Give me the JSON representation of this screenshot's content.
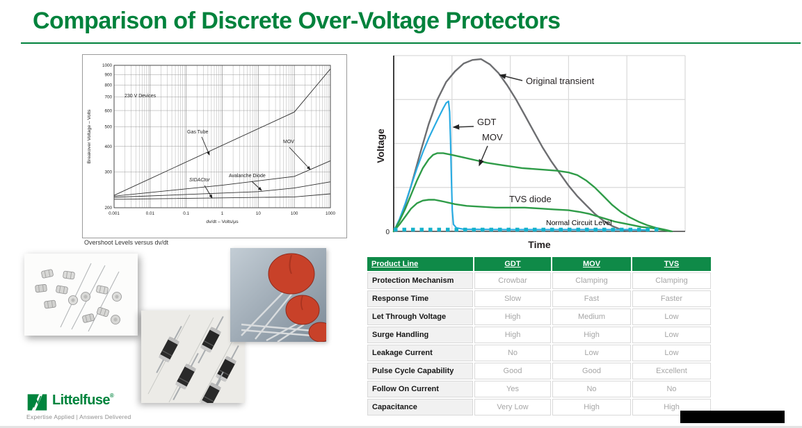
{
  "title": "Comparison of Discrete Over-Voltage Protectors",
  "colors": {
    "accent_green": "#00823C",
    "table_header_green": "#0F8A48",
    "transient_gray": "#6d6e71",
    "gdt_blue": "#29abe2",
    "curve_green": "#2f9c48",
    "normal_level_teal": "#16b2cb"
  },
  "chart_data": [
    {
      "type": "line",
      "title": "Overshoot Levels versus dv/dt",
      "xlabel": "dv/dt – Volts/μs",
      "ylabel": "Breakover Voltage – Volts",
      "xscale": "log",
      "yscale": "log",
      "xlim": [
        0.001,
        1000
      ],
      "ylim": [
        200,
        1000
      ],
      "grid": true,
      "x_ticks": [
        "0.001",
        "0.01",
        "0.1",
        "1",
        "10",
        "100",
        "1000"
      ],
      "y_ticks": [
        1000,
        900,
        800,
        700,
        600,
        500,
        400,
        300,
        200
      ],
      "annotations": {
        "devices": "230 V Devices",
        "gas_tube": "Gas Tube",
        "mov": "MOV",
        "avalanche": "Avalanche Diode",
        "sidactor": "SIDACtor"
      },
      "series": [
        {
          "name": "Gas Tube",
          "points": [
            [
              0.001,
              230
            ],
            [
              100,
              590
            ],
            [
              1000,
              960
            ]
          ]
        },
        {
          "name": "MOV",
          "points": [
            [
              0.001,
              228
            ],
            [
              1,
              258
            ],
            [
              100,
              285
            ],
            [
              1000,
              340
            ]
          ]
        },
        {
          "name": "Avalanche Diode",
          "points": [
            [
              0.001,
              225
            ],
            [
              10,
              240
            ],
            [
              100,
              250
            ],
            [
              1000,
              268
            ]
          ]
        },
        {
          "name": "SIDACtor",
          "points": [
            [
              0.001,
              220
            ],
            [
              100,
              226
            ],
            [
              1000,
              234
            ]
          ]
        }
      ]
    },
    {
      "type": "line",
      "xlabel": "Time",
      "ylabel": "Voltage",
      "origin_label": "0",
      "grid": true,
      "normal_level_label": "Normal Circuit Level",
      "series": [
        {
          "name": "Original transient",
          "color": "#6d6e71",
          "width": 2.4,
          "points": [
            [
              0,
              0
            ],
            [
              3,
              10
            ],
            [
              6,
              26
            ],
            [
              9,
              44
            ],
            [
              12,
              61
            ],
            [
              15,
              75
            ],
            [
              18,
              85
            ],
            [
              21,
              91
            ],
            [
              24,
              95.5
            ],
            [
              27,
              97.5
            ],
            [
              30,
              98
            ],
            [
              33,
              95
            ],
            [
              36,
              90
            ],
            [
              39,
              83
            ],
            [
              42,
              75
            ],
            [
              45,
              66
            ],
            [
              48,
              57
            ],
            [
              51,
              48
            ],
            [
              54,
              40
            ],
            [
              57,
              33
            ],
            [
              60,
              26
            ],
            [
              63,
              20
            ],
            [
              66,
              15
            ],
            [
              69,
              10
            ],
            [
              72,
              6
            ],
            [
              75,
              3
            ],
            [
              78,
              1
            ],
            [
              81,
              0
            ]
          ]
        },
        {
          "name": "GDT",
          "color": "#29abe2",
          "width": 2.2,
          "points": [
            [
              0,
              0
            ],
            [
              2,
              7
            ],
            [
              4,
              16
            ],
            [
              6,
              26
            ],
            [
              8,
              36
            ],
            [
              10,
              45
            ],
            [
              12,
              53
            ],
            [
              14,
              60
            ],
            [
              15.5,
              65
            ],
            [
              17,
              70
            ],
            [
              18,
              73
            ],
            [
              18.8,
              74
            ],
            [
              19.2,
              68
            ],
            [
              19.5,
              52
            ],
            [
              19.8,
              30
            ],
            [
              20.1,
              12
            ],
            [
              20.5,
              4
            ],
            [
              21.5,
              2
            ],
            [
              24,
              1.2
            ],
            [
              40,
              1
            ],
            [
              60,
              1
            ],
            [
              80,
              1
            ],
            [
              87,
              0.8
            ]
          ]
        },
        {
          "name": "MOV",
          "color": "#2f9c48",
          "width": 2.4,
          "points": [
            [
              0,
              0
            ],
            [
              2,
              6
            ],
            [
              4,
              13
            ],
            [
              6,
              21
            ],
            [
              8,
              29
            ],
            [
              10,
              36
            ],
            [
              12,
              41
            ],
            [
              13.5,
              43.5
            ],
            [
              15,
              44.5
            ],
            [
              17,
              44.5
            ],
            [
              20,
              43.5
            ],
            [
              24,
              42
            ],
            [
              28,
              40.5
            ],
            [
              32,
              39
            ],
            [
              36,
              38
            ],
            [
              40,
              37
            ],
            [
              44,
              36
            ],
            [
              48,
              35.5
            ],
            [
              52,
              35
            ],
            [
              56,
              34.5
            ],
            [
              60,
              33.5
            ],
            [
              63,
              32
            ],
            [
              66,
              29
            ],
            [
              69,
              25
            ],
            [
              72,
              20
            ],
            [
              75,
              15
            ],
            [
              78,
              11
            ],
            [
              81,
              8
            ],
            [
              84,
              5.5
            ],
            [
              87,
              3.5
            ],
            [
              90,
              2
            ],
            [
              93,
              1
            ],
            [
              95.5,
              0
            ]
          ]
        },
        {
          "name": "TVS diode",
          "color": "#2f9c48",
          "width": 2.4,
          "points": [
            [
              0,
              0
            ],
            [
              2,
              4
            ],
            [
              4,
              8.5
            ],
            [
              6,
              13
            ],
            [
              8,
              16
            ],
            [
              10,
              17.5
            ],
            [
              12,
              18
            ],
            [
              14,
              18
            ],
            [
              17,
              17
            ],
            [
              21,
              15.5
            ],
            [
              25,
              14.5
            ],
            [
              30,
              14
            ],
            [
              35,
              13.5
            ],
            [
              40,
              13.5
            ],
            [
              45,
              13.5
            ],
            [
              50,
              13
            ],
            [
              55,
              12.5
            ],
            [
              60,
              12
            ],
            [
              64,
              11
            ],
            [
              67,
              10
            ],
            [
              70,
              8.5
            ],
            [
              73,
              7
            ],
            [
              76,
              5.5
            ],
            [
              79,
              4.5
            ],
            [
              82,
              3.5
            ],
            [
              85,
              2.5
            ],
            [
              88,
              2
            ],
            [
              91,
              1.2
            ],
            [
              95,
              0
            ]
          ]
        },
        {
          "name": "Normal Circuit Level",
          "color": "#16b2cb",
          "style": "dotted",
          "width": 5.5,
          "points": [
            [
              0,
              1
            ],
            [
              91,
              1
            ]
          ]
        }
      ]
    }
  ],
  "table": {
    "headers": [
      "Product Line",
      "GDT",
      "MOV",
      "TVS"
    ],
    "rows": [
      {
        "label": "Protection Mechanism",
        "values": [
          "Crowbar",
          "Clamping",
          "Clamping"
        ]
      },
      {
        "label": "Response Time",
        "values": [
          "Slow",
          "Fast",
          "Faster"
        ]
      },
      {
        "label": "Let Through Voltage",
        "values": [
          "High",
          "Medium",
          "Low"
        ]
      },
      {
        "label": "Surge Handling",
        "values": [
          "High",
          "High",
          "Low"
        ]
      },
      {
        "label": "Leakage Current",
        "values": [
          "No",
          "Low",
          "Low"
        ]
      },
      {
        "label": "Pulse Cycle Capability",
        "values": [
          "Good",
          "Good",
          "Excellent"
        ]
      },
      {
        "label": "Follow On Current",
        "values": [
          "Yes",
          "No",
          "No"
        ]
      },
      {
        "label": "Capacitance",
        "values": [
          "Very Low",
          "High",
          "High"
        ]
      }
    ]
  },
  "footer": {
    "brand": "Littelfuse",
    "registered": "®",
    "tagline": "Expertise Applied | Answers Delivered"
  }
}
